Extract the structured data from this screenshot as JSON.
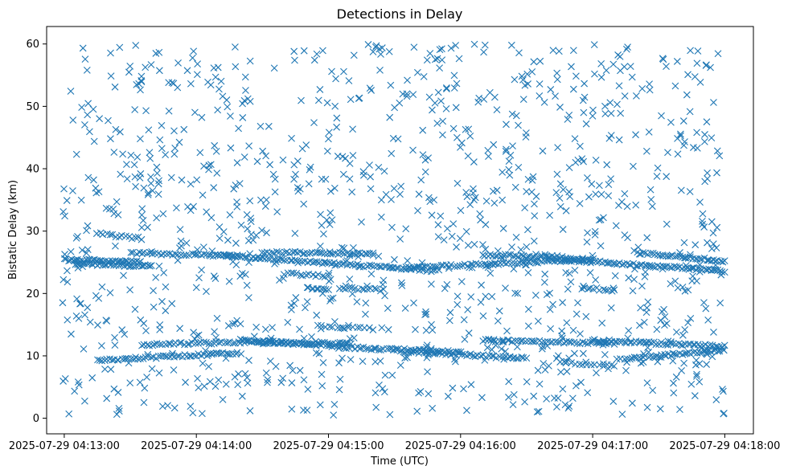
{
  "chart_data": {
    "type": "scatter",
    "title": "Detections in Delay",
    "xlabel": "Time (UTC)",
    "ylabel": "Bistatic Delay (km)",
    "marker": "x",
    "marker_color": "#1f77b4",
    "grid": false,
    "x_axis_type": "datetime",
    "xlim": [
      "2025-07-29 04:12:52",
      "2025-07-29 04:18:13"
    ],
    "ylim": [
      -2.5,
      62.8
    ],
    "x_ticks": [
      "2025-07-29 04:13:00",
      "2025-07-29 04:14:00",
      "2025-07-29 04:15:00",
      "2025-07-29 04:16:00",
      "2025-07-29 04:17:00",
      "2025-07-29 04:18:00"
    ],
    "y_ticks": [
      0,
      10,
      20,
      30,
      40,
      50,
      60
    ],
    "x_range": [
      "2025-07-29 04:12:59",
      "2025-07-29 04:18:00"
    ],
    "tracks": [
      {
        "start": "2025-07-29 04:13:00",
        "end": "2025-07-29 04:13:35",
        "y_start": 25.4,
        "y_end": 25.0,
        "count": 40
      },
      {
        "start": "2025-07-29 04:13:05",
        "end": "2025-07-29 04:13:40",
        "y_start": 24.8,
        "y_end": 24.4,
        "count": 35
      },
      {
        "start": "2025-07-29 04:13:15",
        "end": "2025-07-29 04:13:35",
        "y_start": 29.6,
        "y_end": 28.8,
        "count": 15
      },
      {
        "start": "2025-07-29 04:13:30",
        "end": "2025-07-29 04:14:20",
        "y_start": 26.5,
        "y_end": 26.0,
        "count": 40
      },
      {
        "start": "2025-07-29 04:14:10",
        "end": "2025-07-29 04:15:50",
        "y_start": 26.2,
        "y_end": 23.6,
        "count": 90
      },
      {
        "start": "2025-07-29 04:14:30",
        "end": "2025-07-29 04:15:20",
        "y_start": 26.6,
        "y_end": 26.4,
        "count": 45
      },
      {
        "start": "2025-07-29 04:14:40",
        "end": "2025-07-29 04:15:00",
        "y_start": 23.2,
        "y_end": 22.8,
        "count": 15
      },
      {
        "start": "2025-07-29 04:14:50",
        "end": "2025-07-29 04:15:00",
        "y_start": 20.8,
        "y_end": 20.6,
        "count": 10
      },
      {
        "start": "2025-07-29 04:15:05",
        "end": "2025-07-29 04:15:25",
        "y_start": 20.9,
        "y_end": 20.6,
        "count": 15
      },
      {
        "start": "2025-07-29 04:15:35",
        "end": "2025-07-29 04:17:00",
        "y_start": 24.2,
        "y_end": 25.4,
        "count": 70
      },
      {
        "start": "2025-07-29 04:16:10",
        "end": "2025-07-29 04:16:50",
        "y_start": 26.2,
        "y_end": 25.8,
        "count": 35
      },
      {
        "start": "2025-07-29 04:16:55",
        "end": "2025-07-29 04:17:10",
        "y_start": 20.9,
        "y_end": 20.5,
        "count": 12
      },
      {
        "start": "2025-07-29 04:16:40",
        "end": "2025-07-29 04:18:00",
        "y_start": 25.6,
        "y_end": 23.6,
        "count": 80
      },
      {
        "start": "2025-07-29 04:17:20",
        "end": "2025-07-29 04:18:00",
        "y_start": 26.5,
        "y_end": 25.2,
        "count": 40
      },
      {
        "start": "2025-07-29 04:13:15",
        "end": "2025-07-29 04:14:20",
        "y_start": 9.3,
        "y_end": 10.5,
        "count": 60
      },
      {
        "start": "2025-07-29 04:13:35",
        "end": "2025-07-29 04:14:35",
        "y_start": 11.8,
        "y_end": 12.3,
        "count": 50
      },
      {
        "start": "2025-07-29 04:14:20",
        "end": "2025-07-29 04:15:05",
        "y_start": 12.5,
        "y_end": 11.6,
        "count": 45
      },
      {
        "start": "2025-07-29 04:14:55",
        "end": "2025-07-29 04:15:20",
        "y_start": 14.7,
        "y_end": 14.3,
        "count": 15
      },
      {
        "start": "2025-07-29 04:14:30",
        "end": "2025-07-29 04:15:10",
        "y_start": 12.0,
        "y_end": 12.0,
        "count": 35
      },
      {
        "start": "2025-07-29 04:15:05",
        "end": "2025-07-29 04:16:00",
        "y_start": 11.4,
        "y_end": 10.6,
        "count": 50
      },
      {
        "start": "2025-07-29 04:15:30",
        "end": "2025-07-29 04:16:30",
        "y_start": 10.8,
        "y_end": 9.6,
        "count": 50
      },
      {
        "start": "2025-07-29 04:16:10",
        "end": "2025-07-29 04:17:10",
        "y_start": 12.5,
        "y_end": 12.0,
        "count": 50
      },
      {
        "start": "2025-07-29 04:16:45",
        "end": "2025-07-29 04:17:10",
        "y_start": 9.0,
        "y_end": 8.4,
        "count": 15
      },
      {
        "start": "2025-07-29 04:17:00",
        "end": "2025-07-29 04:18:00",
        "y_start": 12.5,
        "y_end": 11.5,
        "count": 55
      },
      {
        "start": "2025-07-29 04:17:15",
        "end": "2025-07-29 04:18:00",
        "y_start": 9.5,
        "y_end": 11.0,
        "count": 45
      }
    ],
    "scatter_count": 1150,
    "scatter_y_range": [
      0.5,
      60
    ]
  }
}
